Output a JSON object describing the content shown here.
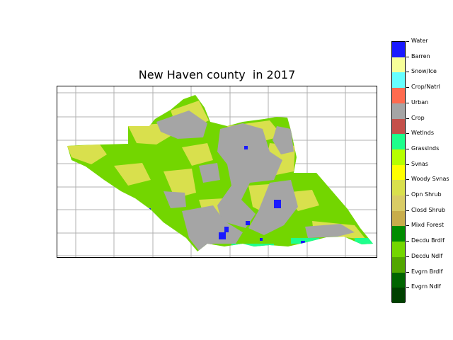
{
  "map": {
    "title": "New Haven county  in 2017"
  },
  "legend": {
    "classes": [
      {
        "label": "Water",
        "color": "#1a1aff"
      },
      {
        "label": "Barren",
        "color": "#f7ff99"
      },
      {
        "label": "Snow/Ice",
        "color": "#66ffff"
      },
      {
        "label": "Crop/Natrl",
        "color": "#ff6b4f"
      },
      {
        "label": "Urban",
        "color": "#a5a5a5"
      },
      {
        "label": "Crop",
        "color": "#c4504a"
      },
      {
        "label": "Wetlnds",
        "color": "#1eff8c"
      },
      {
        "label": "Grasslnds",
        "color": "#b6ff00"
      },
      {
        "label": "Svnas",
        "color": "#ffff00"
      },
      {
        "label": "Woody Svnas",
        "color": "#d9e04d"
      },
      {
        "label": "Opn Shrub",
        "color": "#d9cc66"
      },
      {
        "label": "Closd Shrub",
        "color": "#c8ad4b"
      },
      {
        "label": "Mixd Forest",
        "color": "#008c00"
      },
      {
        "label": "Decdu Brdlf",
        "color": "#73d600"
      },
      {
        "label": "Decdu Ndlf",
        "color": "#52a600"
      },
      {
        "label": "Evgrn Brdlf",
        "color": "#006400"
      },
      {
        "label": "Evgrn Ndlf",
        "color": "#004000"
      }
    ]
  }
}
